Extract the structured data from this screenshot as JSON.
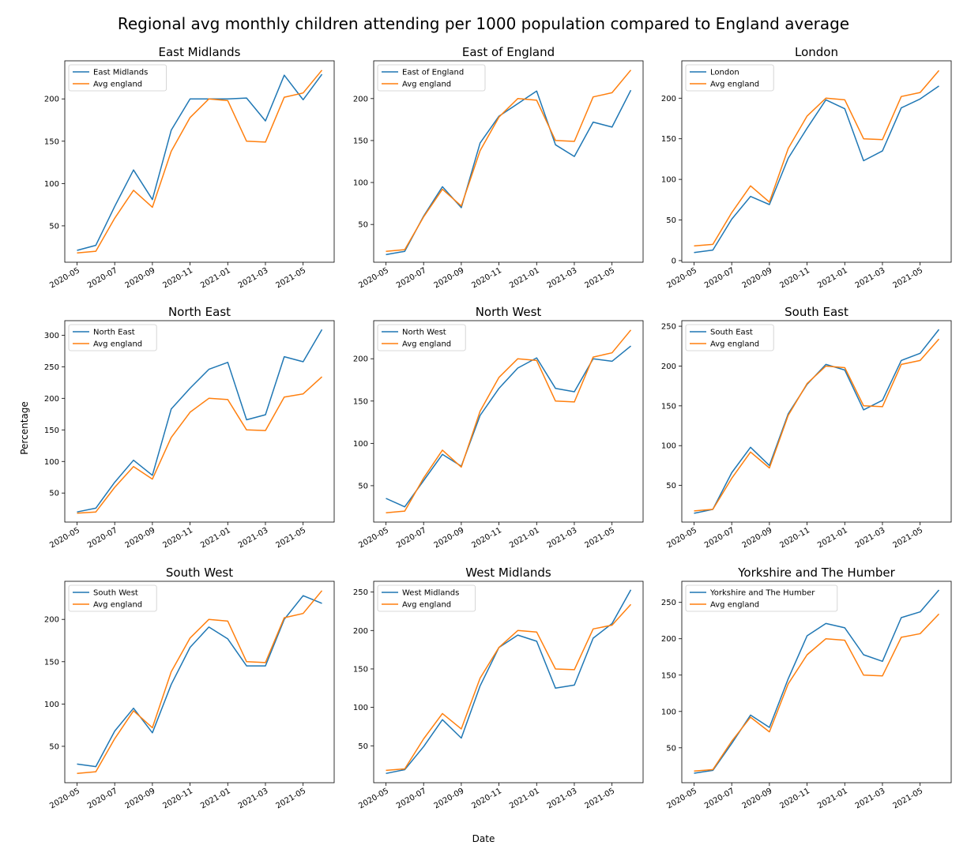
{
  "figure": {
    "title": "Regional avg monthly children attending per 1000 population compared to England average",
    "xlabel": "Date",
    "ylabel": "Percentage"
  },
  "colors": {
    "region": "#1f77b4",
    "england": "#ff7f0e"
  },
  "chart_data": [
    {
      "type": "line",
      "title": "East Midlands",
      "x": [
        "2020-05",
        "2020-06",
        "2020-07",
        "2020-08",
        "2020-09",
        "2020-10",
        "2020-11",
        "2020-12",
        "2021-01",
        "2021-02",
        "2021-03",
        "2021-04",
        "2021-05",
        "2021-06"
      ],
      "xticks": [
        "2020-05",
        "2020-07",
        "2020-09",
        "2020-11",
        "2021-01",
        "2021-03",
        "2021-05"
      ],
      "yticks": [
        50,
        100,
        150,
        200
      ],
      "ylim": [
        7,
        245
      ],
      "legend": "upper left",
      "series": [
        {
          "name": "East Midlands",
          "values": [
            21,
            27,
            73,
            116,
            81,
            163,
            200,
            200,
            200,
            201,
            174,
            228,
            199,
            229
          ]
        },
        {
          "name": "Avg england",
          "values": [
            18,
            20,
            59,
            92,
            72,
            138,
            178,
            200,
            198,
            150,
            149,
            202,
            207,
            234
          ]
        }
      ]
    },
    {
      "type": "line",
      "title": "East of England",
      "x": [
        "2020-05",
        "2020-06",
        "2020-07",
        "2020-08",
        "2020-09",
        "2020-10",
        "2020-11",
        "2020-12",
        "2021-01",
        "2021-02",
        "2021-03",
        "2021-04",
        "2021-05",
        "2021-06"
      ],
      "xticks": [
        "2020-05",
        "2020-07",
        "2020-09",
        "2020-11",
        "2021-01",
        "2021-03",
        "2021-05"
      ],
      "yticks": [
        50,
        100,
        150,
        200
      ],
      "ylim": [
        5,
        245
      ],
      "legend": "upper left",
      "series": [
        {
          "name": "East of England",
          "values": [
            14,
            18,
            60,
            95,
            70,
            147,
            179,
            194,
            209,
            145,
            131,
            172,
            166,
            210
          ]
        },
        {
          "name": "Avg england",
          "values": [
            18,
            20,
            59,
            92,
            72,
            138,
            178,
            200,
            198,
            150,
            149,
            202,
            207,
            234
          ]
        }
      ]
    },
    {
      "type": "line",
      "title": "London",
      "x": [
        "2020-05",
        "2020-06",
        "2020-07",
        "2020-08",
        "2020-09",
        "2020-10",
        "2020-11",
        "2020-12",
        "2021-01",
        "2021-02",
        "2021-03",
        "2021-04",
        "2021-05",
        "2021-06"
      ],
      "xticks": [
        "2020-05",
        "2020-07",
        "2020-09",
        "2020-11",
        "2021-01",
        "2021-03",
        "2021-05"
      ],
      "yticks": [
        0,
        50,
        100,
        150,
        200
      ],
      "ylim": [
        -2,
        246
      ],
      "legend": "upper left",
      "series": [
        {
          "name": "London",
          "values": [
            10,
            13,
            51,
            79,
            69,
            126,
            163,
            198,
            187,
            123,
            135,
            188,
            199,
            215
          ]
        },
        {
          "name": "Avg england",
          "values": [
            18,
            20,
            59,
            92,
            72,
            138,
            178,
            200,
            198,
            150,
            149,
            202,
            207,
            234
          ]
        }
      ]
    },
    {
      "type": "line",
      "title": "North East",
      "x": [
        "2020-05",
        "2020-06",
        "2020-07",
        "2020-08",
        "2020-09",
        "2020-10",
        "2020-11",
        "2020-12",
        "2021-01",
        "2021-02",
        "2021-03",
        "2021-04",
        "2021-05",
        "2021-06"
      ],
      "xticks": [
        "2020-05",
        "2020-07",
        "2020-09",
        "2020-11",
        "2021-01",
        "2021-03",
        "2021-05"
      ],
      "yticks": [
        50,
        100,
        150,
        200,
        250,
        300
      ],
      "ylim": [
        4,
        323
      ],
      "legend": "upper left",
      "series": [
        {
          "name": "North East",
          "values": [
            20,
            26,
            67,
            102,
            78,
            183,
            216,
            246,
            257,
            166,
            174,
            266,
            258,
            309
          ]
        },
        {
          "name": "Avg england",
          "values": [
            18,
            20,
            59,
            92,
            72,
            138,
            178,
            200,
            198,
            150,
            149,
            202,
            207,
            234
          ]
        }
      ]
    },
    {
      "type": "line",
      "title": "North West",
      "x": [
        "2020-05",
        "2020-06",
        "2020-07",
        "2020-08",
        "2020-09",
        "2020-10",
        "2020-11",
        "2020-12",
        "2021-01",
        "2021-02",
        "2021-03",
        "2021-04",
        "2021-05",
        "2021-06"
      ],
      "xticks": [
        "2020-05",
        "2020-07",
        "2020-09",
        "2020-11",
        "2021-01",
        "2021-03",
        "2021-05"
      ],
      "yticks": [
        50,
        100,
        150,
        200
      ],
      "ylim": [
        7,
        245
      ],
      "legend": "upper left",
      "series": [
        {
          "name": "North West",
          "values": [
            35,
            25,
            56,
            87,
            73,
            133,
            165,
            189,
            201,
            165,
            161,
            200,
            197,
            215
          ]
        },
        {
          "name": "Avg england",
          "values": [
            18,
            20,
            59,
            92,
            72,
            138,
            178,
            200,
            198,
            150,
            149,
            202,
            207,
            234
          ]
        }
      ]
    },
    {
      "type": "line",
      "title": "South East",
      "x": [
        "2020-05",
        "2020-06",
        "2020-07",
        "2020-08",
        "2020-09",
        "2020-10",
        "2020-11",
        "2020-12",
        "2021-01",
        "2021-02",
        "2021-03",
        "2021-04",
        "2021-05",
        "2021-06"
      ],
      "xticks": [
        "2020-05",
        "2020-07",
        "2020-09",
        "2020-11",
        "2021-01",
        "2021-03",
        "2021-05"
      ],
      "yticks": [
        50,
        100,
        150,
        200,
        250
      ],
      "ylim": [
        4,
        257
      ],
      "legend": "upper left",
      "series": [
        {
          "name": "South East",
          "values": [
            15,
            20,
            66,
            98,
            75,
            140,
            177,
            202,
            195,
            145,
            157,
            207,
            216,
            246
          ]
        },
        {
          "name": "Avg england",
          "values": [
            18,
            20,
            59,
            92,
            72,
            138,
            178,
            200,
            198,
            150,
            149,
            202,
            207,
            234
          ]
        }
      ]
    },
    {
      "type": "line",
      "title": "South West",
      "x": [
        "2020-05",
        "2020-06",
        "2020-07",
        "2020-08",
        "2020-09",
        "2020-10",
        "2020-11",
        "2020-12",
        "2021-01",
        "2021-02",
        "2021-03",
        "2021-04",
        "2021-05",
        "2021-06"
      ],
      "xticks": [
        "2020-05",
        "2020-07",
        "2020-09",
        "2020-11",
        "2021-01",
        "2021-03",
        "2021-05"
      ],
      "yticks": [
        50,
        100,
        150,
        200
      ],
      "ylim": [
        7,
        245
      ],
      "legend": "upper left",
      "series": [
        {
          "name": "South West",
          "values": [
            29,
            26,
            68,
            95,
            66,
            123,
            167,
            191,
            177,
            145,
            145,
            200,
            228,
            219
          ]
        },
        {
          "name": "Avg england",
          "values": [
            18,
            20,
            59,
            92,
            72,
            138,
            178,
            200,
            198,
            150,
            149,
            202,
            207,
            234
          ]
        }
      ]
    },
    {
      "type": "line",
      "title": "West Midlands",
      "x": [
        "2020-05",
        "2020-06",
        "2020-07",
        "2020-08",
        "2020-09",
        "2020-10",
        "2020-11",
        "2020-12",
        "2021-01",
        "2021-02",
        "2021-03",
        "2021-04",
        "2021-05",
        "2021-06"
      ],
      "xticks": [
        "2020-05",
        "2020-07",
        "2020-09",
        "2020-11",
        "2021-01",
        "2021-03",
        "2021-05"
      ],
      "yticks": [
        50,
        100,
        150,
        200,
        250
      ],
      "ylim": [
        2,
        264
      ],
      "legend": "upper left",
      "series": [
        {
          "name": "West Midlands",
          "values": [
            14,
            19,
            49,
            84,
            60,
            128,
            178,
            194,
            186,
            125,
            129,
            190,
            209,
            253
          ]
        },
        {
          "name": "Avg england",
          "values": [
            18,
            20,
            59,
            92,
            72,
            138,
            178,
            200,
            198,
            150,
            149,
            202,
            207,
            234
          ]
        }
      ]
    },
    {
      "type": "line",
      "title": "Yorkshire and The Humber",
      "x": [
        "2020-05",
        "2020-06",
        "2020-07",
        "2020-08",
        "2020-09",
        "2020-10",
        "2020-11",
        "2020-12",
        "2021-01",
        "2021-02",
        "2021-03",
        "2021-04",
        "2021-05",
        "2021-06"
      ],
      "xticks": [
        "2020-05",
        "2020-07",
        "2020-09",
        "2020-11",
        "2021-01",
        "2021-03",
        "2021-05"
      ],
      "yticks": [
        50,
        100,
        150,
        200,
        250
      ],
      "ylim": [
        2,
        279
      ],
      "legend": "upper left",
      "series": [
        {
          "name": "Yorkshire and The Humber",
          "values": [
            15,
            19,
            56,
            95,
            78,
            145,
            204,
            221,
            215,
            178,
            169,
            229,
            237,
            267
          ]
        },
        {
          "name": "Avg england",
          "values": [
            18,
            20,
            59,
            92,
            72,
            138,
            178,
            200,
            198,
            150,
            149,
            202,
            207,
            234
          ]
        }
      ]
    }
  ]
}
